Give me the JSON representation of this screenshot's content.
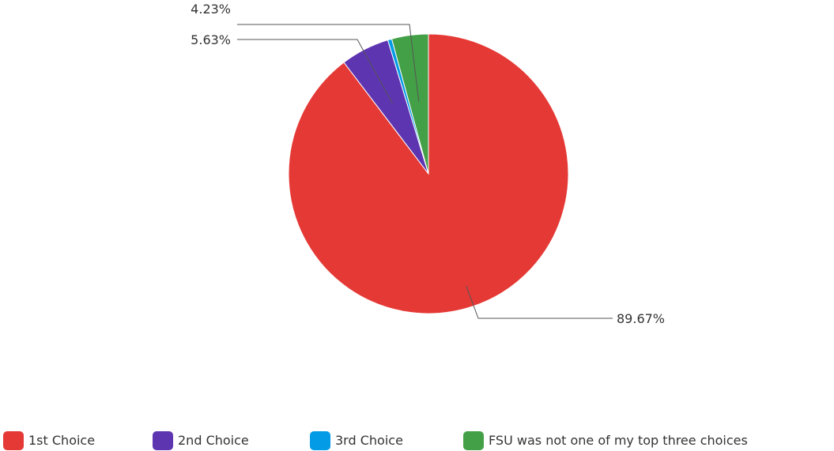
{
  "chart_data": {
    "type": "pie",
    "title": "",
    "slices": [
      {
        "label": "1st Choice",
        "value": 89.67,
        "display": "89.67%",
        "color": "#e53935"
      },
      {
        "label": "2nd Choice",
        "value": 5.63,
        "display": "5.63%",
        "color": "#5e35b1"
      },
      {
        "label": "3rd Choice",
        "value": 0.47,
        "display": "",
        "color": "#039be5"
      },
      {
        "label": "FSU was not one of my top three choices",
        "value": 4.23,
        "display": "4.23%",
        "color": "#43a047"
      }
    ],
    "legend_position": "bottom"
  }
}
